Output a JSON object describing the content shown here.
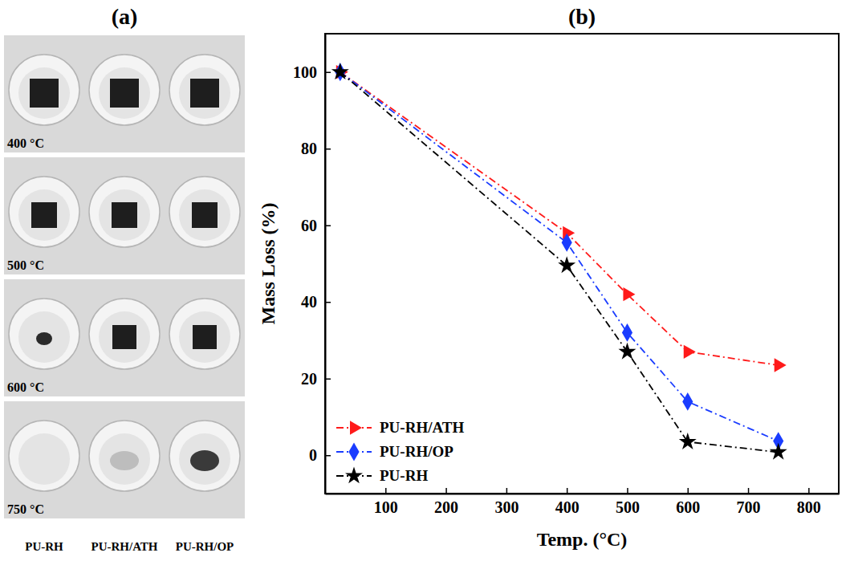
{
  "photo_panel": {
    "title": "(a)",
    "temperatures": [
      "400 °C",
      "500 °C",
      "600 °C",
      "750 °C"
    ],
    "samples": [
      "PU-RH",
      "PU-RH/ATH",
      "PU-RH/OP"
    ]
  },
  "chart_data": {
    "type": "line",
    "title": "(b)",
    "x_label": "Temp. (°C)",
    "y_label": "Mass Loss (%)",
    "x": [
      25,
      400,
      500,
      600,
      750
    ],
    "xlim": [
      0,
      850
    ],
    "xticks": [
      100,
      200,
      300,
      400,
      500,
      600,
      700,
      800
    ],
    "ylim": [
      -10,
      110
    ],
    "yticks": [
      0,
      20,
      40,
      60,
      80,
      100
    ],
    "legend": "lower left",
    "line_style": "dashdot",
    "series": [
      {
        "name": "PU-RH/ATH",
        "color": "#ff1a1a",
        "marker": "triangle-right",
        "values": [
          100,
          58,
          42,
          27,
          23.5
        ]
      },
      {
        "name": "PU-RH/OP",
        "color": "#1a3cff",
        "marker": "diamond",
        "values": [
          100,
          55.5,
          32,
          14,
          3.7
        ]
      },
      {
        "name": "PU-RH",
        "color": "#000000",
        "marker": "star",
        "values": [
          100,
          49.5,
          27,
          3.5,
          0.8
        ]
      }
    ]
  }
}
